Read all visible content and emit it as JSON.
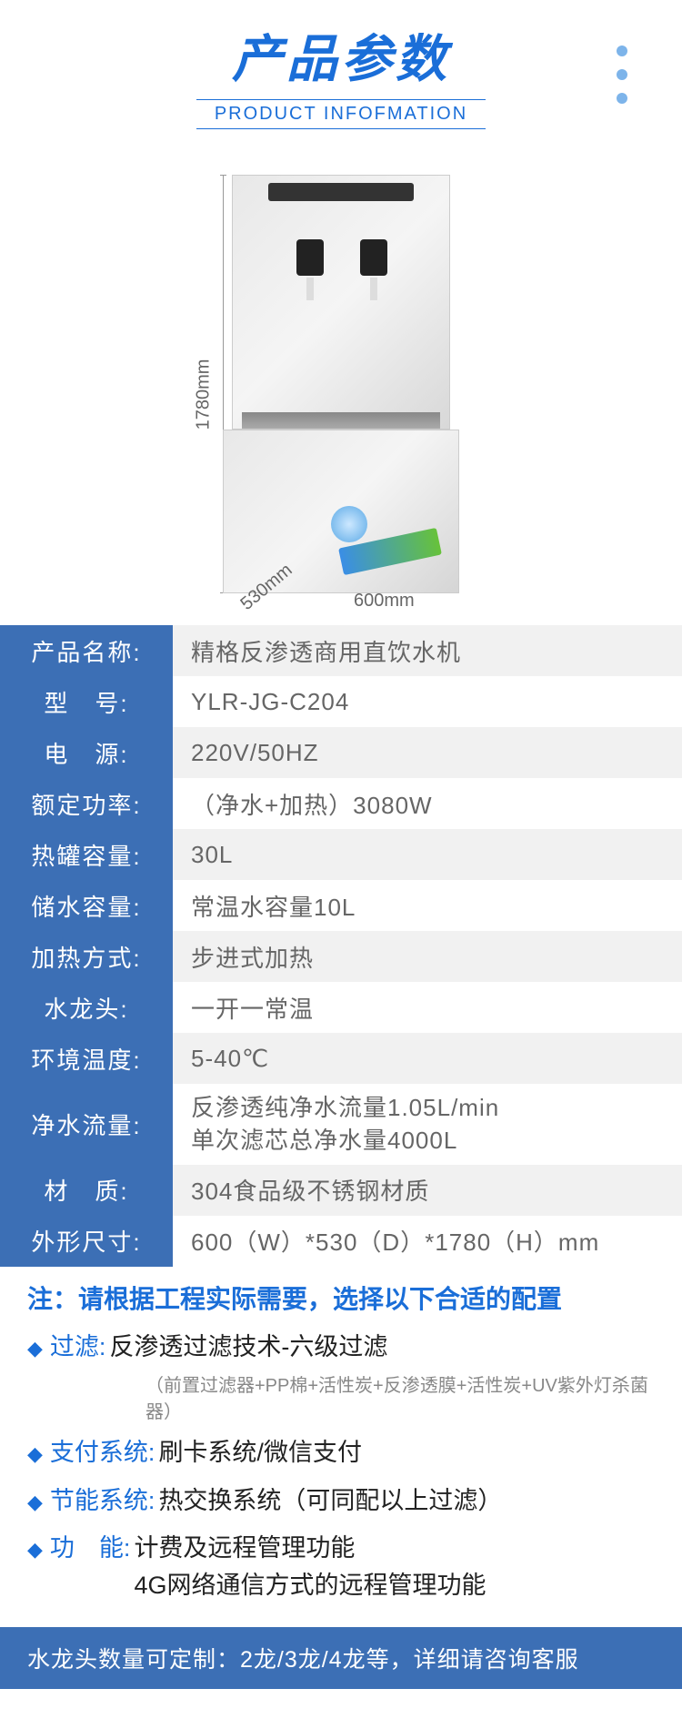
{
  "header": {
    "title": "产品参数",
    "subtitle": "PRODUCT INFOFMATION"
  },
  "dimensions": {
    "height": "1780mm",
    "depth": "530mm",
    "width": "600mm"
  },
  "specs": [
    {
      "label": "产品名称:",
      "value": "精格反渗透商用直饮水机"
    },
    {
      "label": "型　号:",
      "value": "YLR-JG-C204"
    },
    {
      "label": "电　源:",
      "value": "220V/50HZ"
    },
    {
      "label": "额定功率:",
      "value": "（净水+加热）3080W"
    },
    {
      "label": "热罐容量:",
      "value": "30L"
    },
    {
      "label": "储水容量:",
      "value": "常温水容量10L"
    },
    {
      "label": "加热方式:",
      "value": "步进式加热"
    },
    {
      "label": "水龙头:",
      "value": "一开一常温"
    },
    {
      "label": "环境温度:",
      "value": "5-40℃"
    },
    {
      "label": "净水流量:",
      "value": "反渗透纯净水流量1.05L/min",
      "value2": "单次滤芯总净水量4000L"
    },
    {
      "label": "材　质:",
      "value": "304食品级不锈钢材质"
    },
    {
      "label": "外形尺寸:",
      "value": "600（W）*530（D）*1780（H）mm"
    }
  ],
  "notes": {
    "heading": "注：请根据工程实际需要，选择以下合适的配置",
    "items": [
      {
        "label": "过滤:",
        "value": "反渗透过滤技术-六级过滤",
        "sub": "（前置过滤器+PP棉+活性炭+反渗透膜+活性炭+UV紫外灯杀菌器）"
      },
      {
        "label": "支付系统:",
        "value": "刷卡系统/微信支付"
      },
      {
        "label": "节能系统:",
        "value": "热交换系统（可同配以上过滤）"
      },
      {
        "label": "功　能:",
        "value": "计费及远程管理功能",
        "value2": "4G网络通信方式的远程管理功能"
      }
    ]
  },
  "footer": "水龙头数量可定制：2龙/3龙/4龙等，详细请咨询客服",
  "colors": {
    "primary": "#1a6ed8",
    "label_bg": "#3c6fb5",
    "value_bg_odd": "#f1f1f1",
    "value_bg_even": "#ffffff",
    "text_gray": "#666666"
  }
}
